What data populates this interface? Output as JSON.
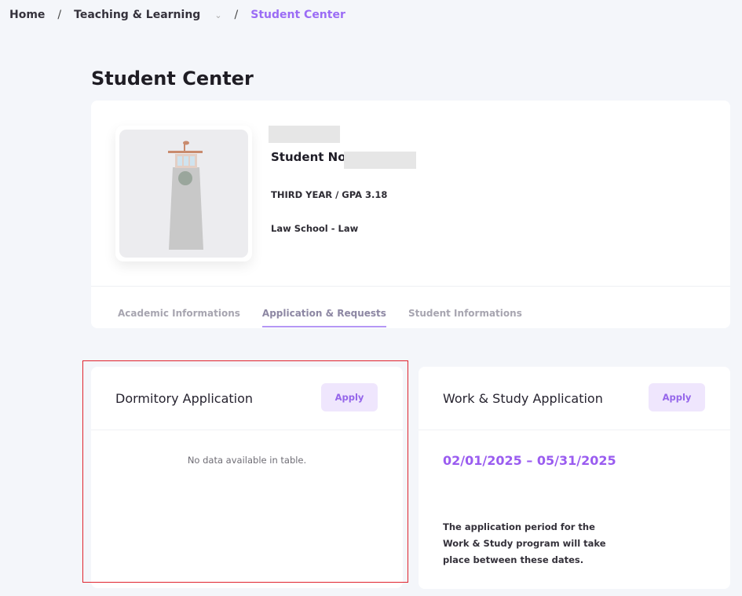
{
  "breadcrumb": {
    "home": "Home",
    "section": "Teaching & Learning",
    "current": "Student Center",
    "separator": "/"
  },
  "page_title": "Student Center",
  "profile": {
    "student_no_label": "Student No",
    "year_gpa": "THIRD YEAR / GPA 3.18",
    "school": "Law School - Law"
  },
  "tabs": [
    {
      "label": "Academic Informations",
      "active": false
    },
    {
      "label": "Application & Requests",
      "active": true
    },
    {
      "label": "Student Informations",
      "active": false
    }
  ],
  "dormitory": {
    "title": "Dormitory Application",
    "apply_label": "Apply",
    "empty_text": "No data available in table."
  },
  "work_study": {
    "title": "Work & Study Application",
    "apply_label": "Apply",
    "period": "02/01/2025 – 05/31/2025",
    "description": "The application period for the Work & Study program will take place between these dates."
  },
  "colors": {
    "accent": "#9b6cf5",
    "highlight": "#e0242e"
  }
}
